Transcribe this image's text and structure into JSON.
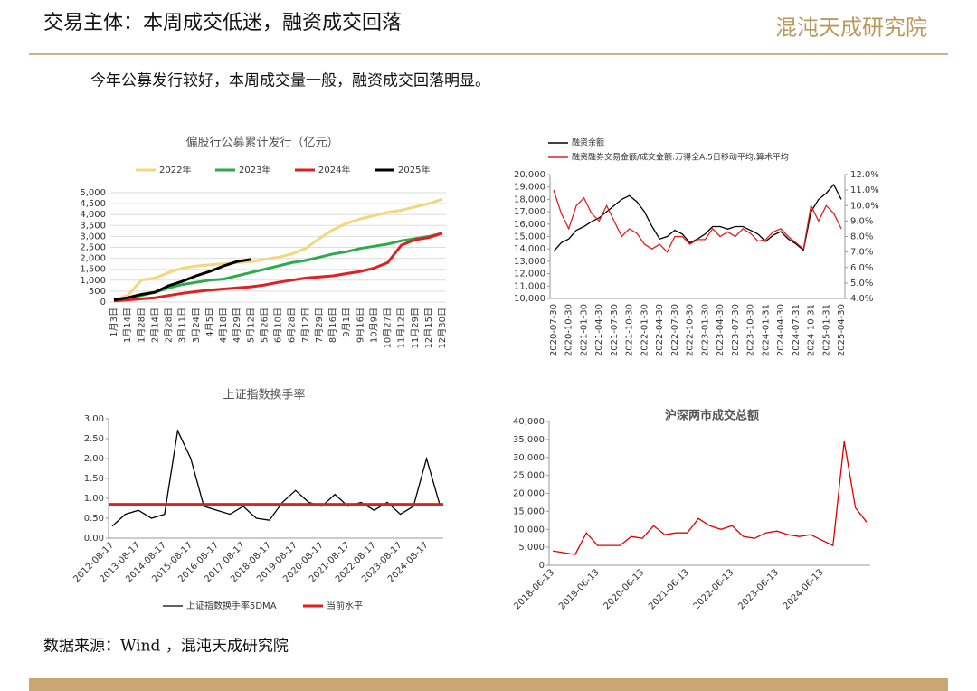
{
  "header": {
    "title": "交易主体：本周成交低迷，融资成交回落",
    "logo": "混沌天成研究院"
  },
  "subtitle": "今年公募发行较好，本周成交量一般，融资成交回落明显。",
  "source": "数据来源：Wind ，混沌天成研究院",
  "chart_data": [
    {
      "type": "line",
      "title": "偏股行公募累计发行（亿元）",
      "grid": true,
      "legend": "top",
      "categories": [
        "1月3日",
        "1月14日",
        "1月28日",
        "2月14日",
        "2月28日",
        "3月11日",
        "3月24日",
        "4月5日",
        "4月18日",
        "4月29日",
        "5月12日",
        "5月26日",
        "6月10日",
        "6月28日",
        "7月12日",
        "7月29日",
        "8月16日",
        "9月1日",
        "9月16日",
        "10月9日",
        "10月27日",
        "11月12日",
        "11月29日",
        "12月15日",
        "12月30日"
      ],
      "ylim": [
        0,
        5000
      ],
      "yticks": [
        0,
        500,
        {
          "value": 1000,
          "label": "1,000"
        },
        {
          "value": 1500,
          "label": "1,500"
        },
        {
          "value": 2000,
          "label": "2,000"
        },
        {
          "value": 2500,
          "label": "2,500"
        },
        {
          "value": 3000,
          "label": "3,000"
        },
        {
          "value": 3500,
          "label": "3,500"
        },
        {
          "value": 4000,
          "label": "4,000"
        },
        {
          "value": 4500,
          "label": "4,500"
        },
        {
          "value": 5000,
          "label": "5,000"
        }
      ],
      "series": [
        {
          "name": "2022年",
          "color": "#f3d77c",
          "values": [
            100,
            300,
            1000,
            1100,
            1350,
            1550,
            1650,
            1700,
            1750,
            1800,
            1850,
            1950,
            2050,
            2200,
            2450,
            2900,
            3300,
            3600,
            3800,
            3950,
            4100,
            4200,
            4350,
            4500,
            4700
          ]
        },
        {
          "name": "2023年",
          "color": "#2eaa4e",
          "values": [
            100,
            200,
            300,
            450,
            650,
            800,
            900,
            1000,
            1050,
            1200,
            1350,
            1500,
            1650,
            1800,
            1900,
            2050,
            2200,
            2300,
            2450,
            2550,
            2650,
            2800,
            2900,
            3000,
            3150
          ]
        },
        {
          "name": "2024年",
          "color": "#e02020",
          "values": [
            50,
            100,
            150,
            200,
            300,
            400,
            480,
            550,
            600,
            650,
            700,
            780,
            900,
            1000,
            1100,
            1150,
            1200,
            1300,
            1400,
            1550,
            1800,
            2600,
            2850,
            2950,
            3150
          ]
        },
        {
          "name": "2025年",
          "color": "#000000",
          "values": [
            100,
            200,
            350,
            450,
            750,
            950,
            1200,
            1400,
            1650,
            1850,
            1950,
            null,
            null,
            null,
            null,
            null,
            null,
            null,
            null,
            null,
            null,
            null,
            null,
            null,
            null
          ]
        }
      ]
    },
    {
      "type": "line",
      "legend": "top-left",
      "categories": [
        "2020-07-30",
        null,
        "2020-10-30",
        null,
        "2021-01-30",
        null,
        "2021-04-30",
        null,
        "2021-07-30",
        null,
        "2021-10-30",
        null,
        "2022-01-30",
        null,
        "2022-04-30",
        null,
        "2022-07-30",
        null,
        "2022-10-30",
        null,
        "2023-01-30",
        null,
        "2023-04-30",
        null,
        "2023-07-30",
        null,
        "2023-10-30",
        null,
        "2024-01-31",
        null,
        "2024-04-30",
        null,
        "2024-07-31",
        null,
        "2024-10-31",
        null,
        "2025-01-31",
        null,
        "2025-04-30"
      ],
      "ylim": [
        10000,
        20000
      ],
      "yticks": [
        {
          "value": 10000,
          "label": "10,000"
        },
        {
          "value": 11000,
          "label": "11,000"
        },
        {
          "value": 12000,
          "label": "12,000"
        },
        {
          "value": 13000,
          "label": "13,000"
        },
        {
          "value": 14000,
          "label": "14,000"
        },
        {
          "value": 15000,
          "label": "15,000"
        },
        {
          "value": 16000,
          "label": "16,000"
        },
        {
          "value": 17000,
          "label": "17,000"
        },
        {
          "value": 18000,
          "label": "18,000"
        },
        {
          "value": 19000,
          "label": "19,000"
        },
        {
          "value": 20000,
          "label": "20,000"
        }
      ],
      "y2lim": [
        4,
        12
      ],
      "y2ticks": [
        {
          "value": 4,
          "label": "4.0%"
        },
        {
          "value": 5,
          "label": "5.0%"
        },
        {
          "value": 6,
          "label": "6.0%"
        },
        {
          "value": 7,
          "label": "7.0%"
        },
        {
          "value": 8,
          "label": "8.0%"
        },
        {
          "value": 9,
          "label": "9.0%"
        },
        {
          "value": 10,
          "label": "10.0%"
        },
        {
          "value": 11,
          "label": "11.0%"
        },
        {
          "value": 12,
          "label": "12.0%"
        }
      ],
      "series": [
        {
          "name": "融资余额",
          "color": "#000000",
          "values": [
            13800,
            14500,
            14800,
            15500,
            15800,
            16200,
            16500,
            17000,
            17500,
            18000,
            18300,
            17800,
            17000,
            15800,
            14800,
            15000,
            15500,
            15200,
            14500,
            14800,
            15200,
            15800,
            15800,
            15600,
            15800,
            15800,
            15500,
            15200,
            14600,
            15100,
            15400,
            14800,
            14400,
            13900,
            17000,
            18000,
            18500,
            19200,
            18000
          ]
        },
        {
          "name": "融资融券交易金额/成交金额:万得全A:5日移动平均:算术平均",
          "color": "#e02020",
          "axis": "y2",
          "values": [
            11.0,
            9.5,
            8.5,
            10.0,
            10.5,
            9.5,
            9.0,
            10.0,
            9.0,
            8.0,
            8.5,
            8.2,
            7.5,
            7.2,
            7.5,
            7.0,
            8.0,
            8.0,
            7.5,
            7.8,
            7.8,
            8.5,
            8.0,
            8.3,
            8.0,
            8.5,
            8.2,
            7.7,
            7.8,
            8.3,
            8.5,
            8.0,
            7.6,
            7.2,
            10.0,
            9.0,
            10.0,
            9.5,
            8.5
          ]
        }
      ]
    },
    {
      "type": "line",
      "title": "上证指数换手率",
      "legend": "bottom",
      "categories": [
        "2012-08-17",
        null,
        "2013-08-17",
        null,
        "2014-08-17",
        null,
        "2015-08-17",
        null,
        "2016-08-17",
        null,
        "2017-08-17",
        null,
        "2018-08-17",
        null,
        "2019-08-17",
        null,
        "2020-08-17",
        null,
        "2021-08-17",
        null,
        "2022-08-17",
        null,
        "2023-08-17",
        null,
        "2024-08-17",
        null
      ],
      "ylim": [
        0,
        3
      ],
      "yticks": [
        {
          "value": 0,
          "label": "0.00"
        },
        {
          "value": 0.5,
          "label": "0.50"
        },
        {
          "value": 1,
          "label": "1.00"
        },
        {
          "value": 1.5,
          "label": "1.50"
        },
        {
          "value": 2,
          "label": "2.00"
        },
        {
          "value": 2.5,
          "label": "2.50"
        },
        {
          "value": 3,
          "label": "3.00"
        }
      ],
      "series": [
        {
          "name": "上证指数换手率5DMA",
          "color": "#000000",
          "values": [
            0.3,
            0.6,
            0.7,
            0.5,
            0.6,
            2.7,
            2.0,
            0.8,
            0.7,
            0.6,
            0.8,
            0.5,
            0.45,
            0.9,
            1.2,
            0.9,
            0.8,
            1.1,
            0.8,
            0.9,
            0.7,
            0.9,
            0.6,
            0.8,
            2.0,
            0.85
          ]
        }
      ],
      "hline": {
        "name": "当前水平",
        "value": 0.85,
        "color": "#e02020"
      }
    },
    {
      "type": "line",
      "title": "沪深两市成交总额",
      "categories": [
        "2018-06-13",
        null,
        null,
        null,
        "2019-06-13",
        null,
        null,
        null,
        "2020-06-13",
        null,
        null,
        null,
        "2021-06-13",
        null,
        null,
        null,
        "2022-06-13",
        null,
        null,
        null,
        "2023-06-13",
        null,
        null,
        null,
        "2024-06-13",
        null,
        null,
        null,
        null
      ],
      "ylim": [
        0,
        40000
      ],
      "yticks": [
        0,
        {
          "value": 5000,
          "label": "5,000"
        },
        {
          "value": 10000,
          "label": "10,000"
        },
        {
          "value": 15000,
          "label": "15,000"
        },
        {
          "value": 20000,
          "label": "20,000"
        },
        {
          "value": 25000,
          "label": "25,000"
        },
        {
          "value": 30000,
          "label": "30,000"
        },
        {
          "value": 35000,
          "label": "35,000"
        },
        {
          "value": 40000,
          "label": "40,000"
        }
      ],
      "series": [
        {
          "name": "沪深两市成交总额",
          "color": "#e00000",
          "values": [
            4000,
            3500,
            3000,
            9000,
            5500,
            5500,
            5500,
            8000,
            7500,
            11000,
            8500,
            9000,
            9000,
            13000,
            11000,
            10000,
            11000,
            8000,
            7500,
            9000,
            9500,
            8500,
            8000,
            8500,
            7000,
            5500,
            34500,
            16000,
            12000
          ]
        }
      ]
    }
  ]
}
